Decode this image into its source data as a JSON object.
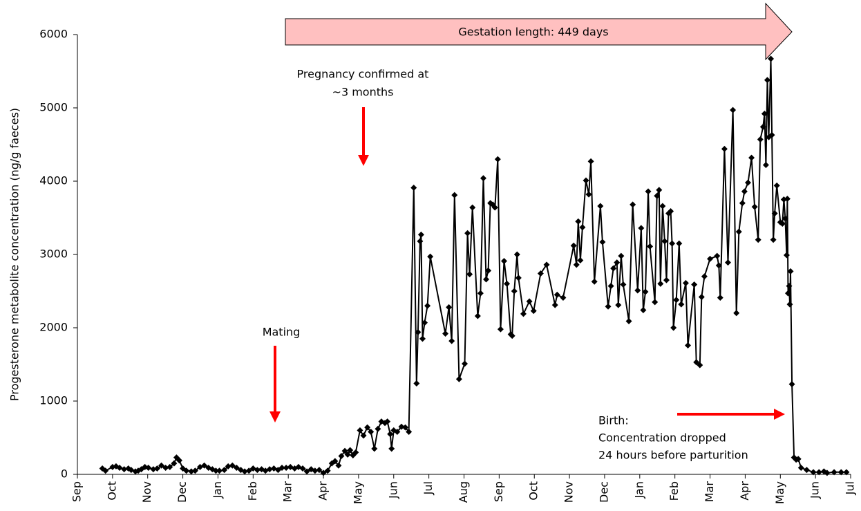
{
  "chart_data": {
    "type": "line",
    "ylabel": "Progesterone metabolite concentration (ng/g faeces)",
    "annotations": [
      "Gestation length: 449 days",
      "Pregnancy confirmed at",
      "~3 months",
      "Mating",
      "Birth:",
      "Concentration dropped",
      "24 hours before parturition"
    ],
    "xlim": [
      0,
      22
    ],
    "xticks": [
      {
        "value": 0,
        "label": "Sep"
      },
      {
        "value": 1,
        "label": "Oct"
      },
      {
        "value": 2,
        "label": "Nov"
      },
      {
        "value": 3,
        "label": "Dec"
      },
      {
        "value": 4,
        "label": "Jan"
      },
      {
        "value": 5,
        "label": "Feb"
      },
      {
        "value": 6,
        "label": "Mar"
      },
      {
        "value": 7,
        "label": "Apr"
      },
      {
        "value": 8,
        "label": "May"
      },
      {
        "value": 9,
        "label": "Jun"
      },
      {
        "value": 10,
        "label": "Jul"
      },
      {
        "value": 11,
        "label": "Aug"
      },
      {
        "value": 12,
        "label": "Sep"
      },
      {
        "value": 13,
        "label": "Oct"
      },
      {
        "value": 14,
        "label": "Nov"
      },
      {
        "value": 15,
        "label": "Dec"
      },
      {
        "value": 16,
        "label": "Jan"
      },
      {
        "value": 17,
        "label": "Feb"
      },
      {
        "value": 18,
        "label": "Mar"
      },
      {
        "value": 19,
        "label": "Apr"
      },
      {
        "value": 20,
        "label": "May"
      },
      {
        "value": 21,
        "label": "Jun"
      },
      {
        "value": 22,
        "label": "Jul"
      }
    ],
    "ylim": [
      0,
      6000
    ],
    "yticks": [
      0,
      1000,
      2000,
      3000,
      4000,
      5000,
      6000
    ],
    "grid": false,
    "series": [
      {
        "color": "#000000",
        "x": [
          0.71,
          0.8,
          1,
          1.1,
          1.2,
          1.33,
          1.45,
          1.53,
          1.65,
          1.73,
          1.82,
          1.92,
          2.02,
          2.16,
          2.27,
          2.39,
          2.51,
          2.63,
          2.75,
          2.82,
          2.9,
          3,
          3.1,
          3.24,
          3.35,
          3.49,
          3.61,
          3.73,
          3.84,
          3.94,
          4.04,
          4.18,
          4.29,
          4.41,
          4.53,
          4.65,
          4.76,
          4.88,
          5,
          5.12,
          5.24,
          5.35,
          5.47,
          5.59,
          5.71,
          5.82,
          5.94,
          6.06,
          6.18,
          6.29,
          6.41,
          6.53,
          6.65,
          6.76,
          6.88,
          7,
          7.12,
          7.24,
          7.33,
          7.43,
          7.51,
          7.61,
          7.69,
          7.76,
          7.84,
          7.92,
          8.04,
          8.14,
          8.25,
          8.35,
          8.45,
          8.55,
          8.65,
          8.75,
          8.82,
          8.9,
          8.94,
          9,
          9.1,
          9.22,
          9.33,
          9.43,
          9.57,
          9.65,
          9.69,
          9.75,
          9.78,
          9.82,
          9.88,
          9.96,
          10.04,
          10.47,
          10.57,
          10.65,
          10.73,
          10.86,
          11.02,
          11.1,
          11.16,
          11.24,
          11.39,
          11.47,
          11.55,
          11.63,
          11.69,
          11.75,
          11.82,
          11.88,
          11.96,
          12.04,
          12.14,
          12.22,
          12.33,
          12.37,
          12.43,
          12.51,
          12.55,
          12.69,
          12.86,
          12.98,
          13.18,
          13.35,
          13.59,
          13.65,
          13.82,
          14.12,
          14.2,
          14.25,
          14.31,
          14.37,
          14.47,
          14.55,
          14.61,
          14.71,
          14.88,
          14.94,
          15.1,
          15.18,
          15.25,
          15.35,
          15.39,
          15.47,
          15.53,
          15.69,
          15.8,
          15.94,
          16.04,
          16.1,
          16.16,
          16.24,
          16.29,
          16.43,
          16.49,
          16.55,
          16.59,
          16.65,
          16.71,
          16.76,
          16.82,
          16.88,
          16.92,
          16.96,
          17.04,
          17.12,
          17.18,
          17.31,
          17.37,
          17.55,
          17.61,
          17.71,
          17.76,
          17.84,
          18,
          18.2,
          18.25,
          18.29,
          18.41,
          18.51,
          18.65,
          18.75,
          18.82,
          18.92,
          18.98,
          19.08,
          19.18,
          19.27,
          19.37,
          19.43,
          19.51,
          19.55,
          19.59,
          19.63,
          19.67,
          19.73,
          19.76,
          19.8,
          19.84,
          19.9,
          20,
          20.06,
          20.1,
          20.14,
          20.18,
          20.2,
          20.22,
          20.25,
          20.27,
          20.29,
          20.33,
          20.39,
          20.45,
          20.51,
          20.59,
          20.75,
          20.94,
          21.1,
          21.24,
          21.33,
          21.53,
          21.73,
          21.88
        ],
        "values": [
          80,
          50,
          100,
          110,
          90,
          70,
          80,
          60,
          40,
          50,
          70,
          100,
          90,
          70,
          80,
          120,
          90,
          100,
          150,
          230,
          190,
          80,
          50,
          40,
          50,
          100,
          120,
          90,
          70,
          50,
          50,
          60,
          110,
          120,
          90,
          60,
          40,
          50,
          80,
          60,
          70,
          50,
          70,
          80,
          60,
          90,
          90,
          100,
          80,
          100,
          80,
          40,
          70,
          50,
          60,
          20,
          50,
          150,
          180,
          120,
          250,
          320,
          270,
          330,
          260,
          300,
          600,
          530,
          640,
          580,
          350,
          620,
          720,
          700,
          720,
          550,
          350,
          600,
          580,
          650,
          640,
          580,
          3910,
          1240,
          1940,
          3180,
          3270,
          1850,
          2070,
          2300,
          2970,
          1920,
          2280,
          1820,
          3810,
          1300,
          1510,
          3290,
          2730,
          3640,
          2160,
          2470,
          4040,
          2660,
          2780,
          3700,
          3680,
          3640,
          4300,
          1980,
          2910,
          2600,
          1910,
          1890,
          2500,
          3000,
          2680,
          2190,
          2360,
          2230,
          2740,
          2860,
          2310,
          2450,
          2410,
          3120,
          2860,
          3450,
          2920,
          3370,
          4010,
          3820,
          4270,
          2630,
          3660,
          3170,
          2290,
          2570,
          2810,
          2890,
          2310,
          2980,
          2590,
          2090,
          3680,
          2510,
          3360,
          2240,
          2490,
          3860,
          3110,
          2350,
          3800,
          3880,
          2600,
          3660,
          3180,
          2650,
          3560,
          3590,
          3150,
          2000,
          2380,
          3150,
          2320,
          2610,
          1760,
          2590,
          1530,
          1490,
          2420,
          2700,
          2940,
          2980,
          2850,
          2410,
          4440,
          2890,
          4970,
          2200,
          3310,
          3700,
          3860,
          3980,
          4320,
          3650,
          3200,
          4570,
          4740,
          4920,
          4220,
          5380,
          4600,
          5670,
          4630,
          3200,
          3560,
          3940,
          3440,
          3420,
          3750,
          3490,
          2990,
          3760,
          2470,
          2570,
          2320,
          2770,
          1230,
          230,
          200,
          210,
          90,
          60,
          30,
          30,
          40,
          20,
          30,
          30,
          30
        ]
      }
    ]
  }
}
